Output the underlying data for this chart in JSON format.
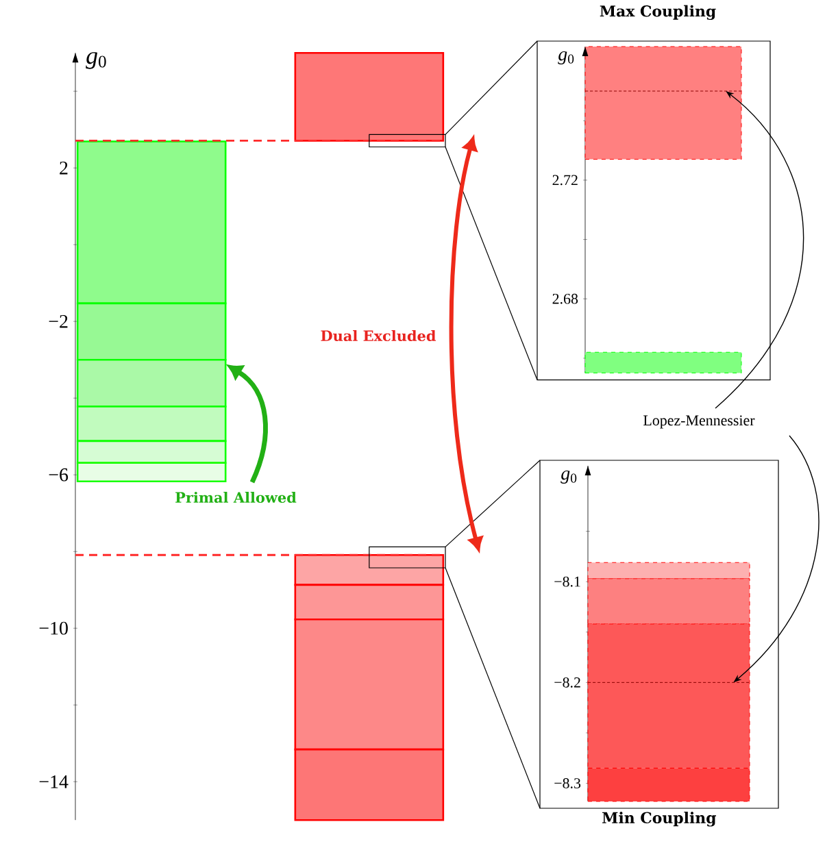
{
  "chart_data": [
    {
      "type": "bar",
      "ylabel": "*g*$_{0}$",
      "categories": [
        null,
        null
      ],
      "series": [
        {
          "color": "#8ffb8c",
          "values": [
            4.22,
            null
          ],
          "base": [
            -1.53,
            null
          ]
        },
        {
          "color": "#97f994",
          "values": [
            1.47,
            null
          ],
          "base": [
            -3.0,
            null
          ]
        },
        {
          "color": "#aaf9a7",
          "values": [
            1.22,
            null
          ],
          "base": [
            -4.22,
            null
          ]
        },
        {
          "color": "#c1fbbe",
          "values": [
            0.9,
            null
          ],
          "base": [
            -5.12,
            null
          ]
        },
        {
          "color": "#d6fcd4",
          "values": [
            0.57,
            null
          ],
          "base": [
            -5.69,
            null
          ]
        },
        {
          "color": "#e8fde6",
          "values": [
            0.48,
            null
          ],
          "base": [
            -6.17,
            null
          ]
        },
        {
          "color": "#fe7777",
          "values": [
            null,
            2.29
          ],
          "base": [
            null,
            2.71
          ]
        },
        {
          "color": "#fda5a5",
          "values": [
            null,
            0.78
          ],
          "base": [
            null,
            -8.87
          ]
        },
        {
          "color": "#fd9696",
          "values": [
            null,
            0.9
          ],
          "base": [
            null,
            -9.77
          ]
        },
        {
          "color": "#fd8888",
          "values": [
            null,
            3.39
          ],
          "base": [
            null,
            -13.16
          ]
        },
        {
          "color": "#fd7676",
          "values": [
            null,
            1.84
          ],
          "base": [
            null,
            -15.0
          ]
        }
      ],
      "ylim": [
        -15,
        5
      ],
      "yticks": [
        {
          "value": -14,
          "label": "−14"
        },
        {
          "value": -12,
          "label": null
        },
        {
          "value": -10,
          "label": "−10"
        },
        {
          "value": -8,
          "label": null
        },
        {
          "value": -6,
          "label": "−6"
        },
        {
          "value": -4,
          "label": null
        },
        {
          "value": -2,
          "label": "−2"
        },
        {
          "value": 0,
          "label": null
        },
        2,
        {
          "value": 4,
          "label": null
        }
      ],
      "ref_lines": [
        {
          "axis": "y",
          "value": 2.71,
          "color": "#ff2a2a",
          "line_style": "dashed"
        },
        {
          "axis": "y",
          "value": -8.09,
          "color": "#ff2a2a",
          "line_style": "dashed"
        }
      ],
      "annotations": [
        "Dual Excluded",
        "Primal Allowed"
      ]
    },
    {
      "type": "bar",
      "title": "Max Coupling",
      "ylabel": "*g*$_{0}$",
      "categories": [
        null
      ],
      "series": [
        {
          "color": "#ff8080",
          "values": [
            0.038
          ],
          "base": [
            2.727
          ]
        },
        {
          "color": "#80ff80",
          "values": [
            0.007
          ],
          "base": [
            2.655
          ]
        }
      ],
      "ylim": [
        2.655,
        2.765
      ],
      "yticks": [
        {
          "value": 2.66,
          "label": null
        },
        2.68,
        {
          "value": 2.7,
          "label": null
        },
        2.72,
        {
          "value": 2.74,
          "label": null
        }
      ],
      "ref_lines": [
        {
          "axis": "y",
          "value": 2.75,
          "label": "Lopez-Mennessier",
          "color": "#8b0000",
          "line_style": "dashed"
        }
      ],
      "line_style": "dashed"
    },
    {
      "type": "bar",
      "title": "Min Coupling",
      "ylabel": "*g*$_{0}$",
      "categories": [
        null
      ],
      "series": [
        {
          "color": "#fdb0b0",
          "values": [
            0.016
          ],
          "base": [
            -8.097
          ]
        },
        {
          "color": "#fd8080",
          "values": [
            0.045
          ],
          "base": [
            -8.142
          ]
        },
        {
          "color": "#fd5858",
          "values": [
            0.143
          ],
          "base": [
            -8.285
          ]
        },
        {
          "color": "#fd4040",
          "values": [
            0.033
          ],
          "base": [
            -8.318
          ]
        }
      ],
      "ylim": [
        -8.318,
        -7.985
      ],
      "yticks": [
        {
          "value": -8.3,
          "label": "−8.3"
        },
        {
          "value": -8.25,
          "label": null
        },
        {
          "value": -8.2,
          "label": "−8.2"
        },
        {
          "value": -8.15,
          "label": null
        },
        {
          "value": -8.1,
          "label": "−8.1"
        },
        {
          "value": -8.05,
          "label": null
        }
      ],
      "ref_lines": [
        {
          "axis": "y",
          "value": -8.2,
          "color": "#8b0000",
          "line_style": "dashed"
        }
      ],
      "line_style": "dashed"
    }
  ]
}
